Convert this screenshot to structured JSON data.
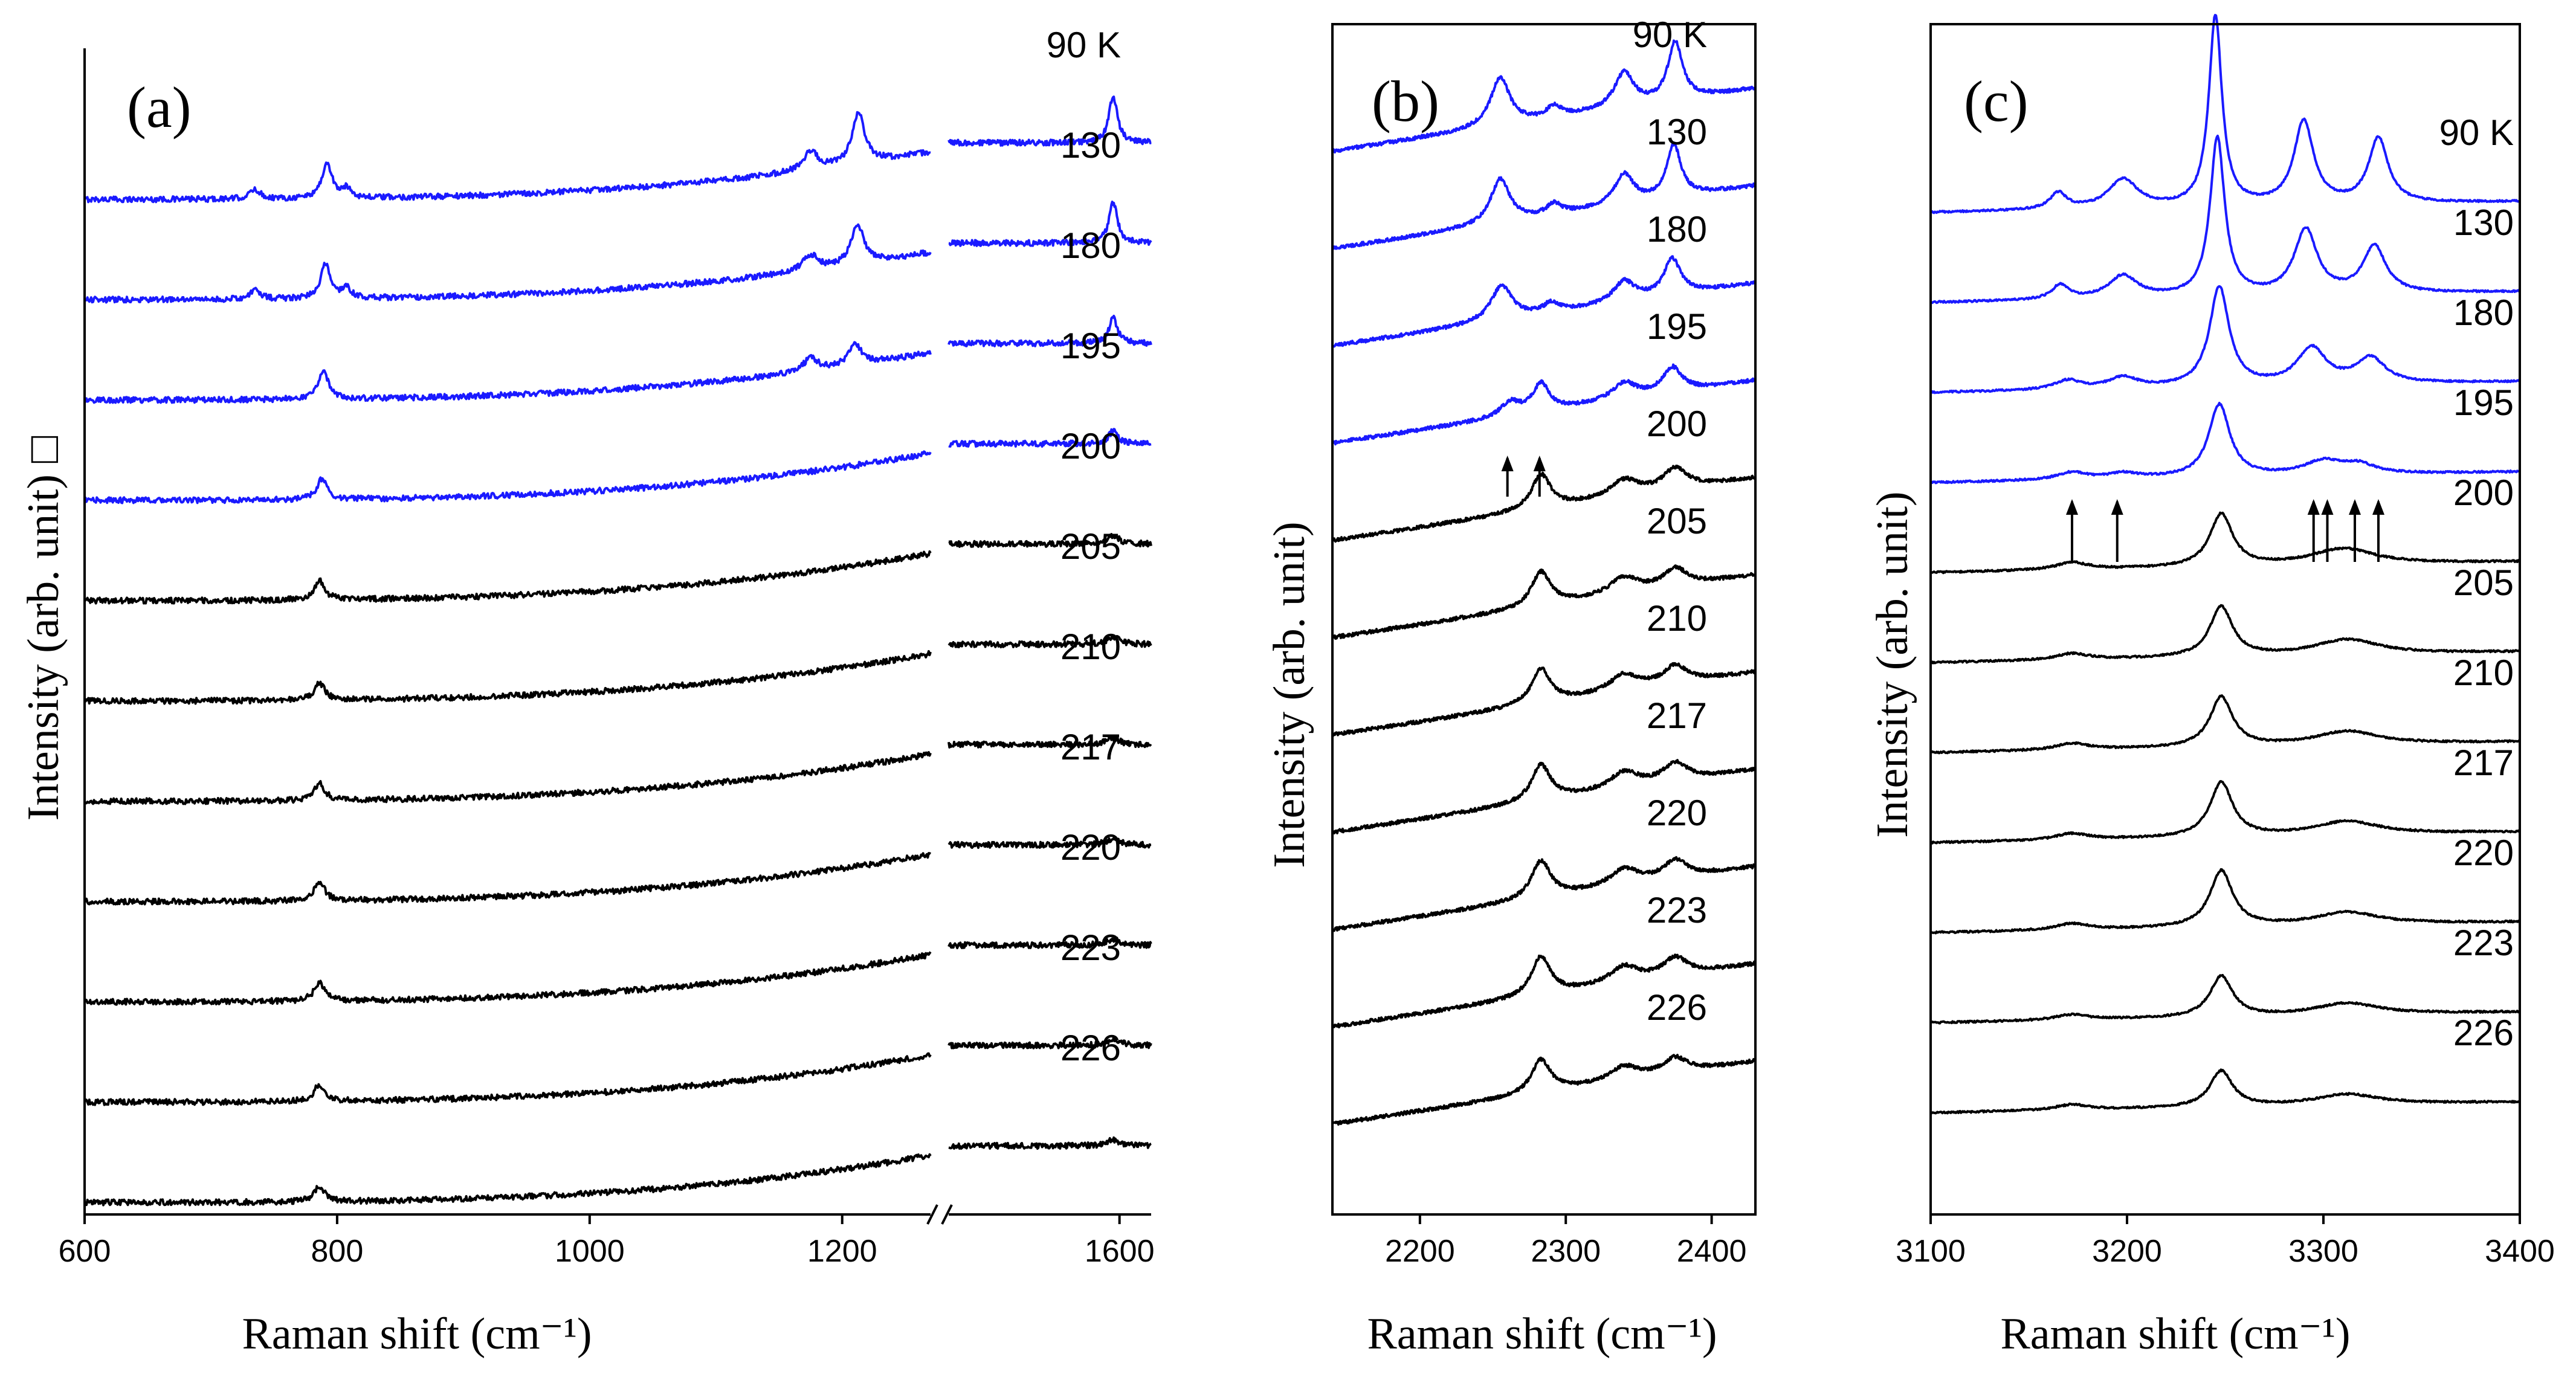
{
  "colors": {
    "cold": "#1a1aff",
    "warm": "#000000",
    "axis": "#000000"
  },
  "chart_data": [
    {
      "panel": "(a)",
      "type": "line",
      "xlabel": "Raman shift",
      "xunit": "(cm⁻¹)",
      "ylabel": "Intensity (arb. unit)",
      "ylabel_suffix": "□",
      "x_segments": [
        [
          600,
          1270
        ],
        [
          1330,
          1650
        ]
      ],
      "axis_break_at": 1300,
      "ticks": [
        600,
        800,
        1000,
        1200,
        1600
      ],
      "series": [
        {
          "temp": "90 K",
          "phase": "cold",
          "peaks": [
            [
              735,
              0.06,
              5
            ],
            [
              792,
              0.22,
              5
            ],
            [
              808,
              0.06,
              4
            ],
            [
              1175,
              0.12,
              7
            ],
            [
              1213,
              0.32,
              6
            ],
            [
              1590,
              0.3,
              8
            ]
          ]
        },
        {
          "temp": "130",
          "phase": "cold",
          "peaks": [
            [
              735,
              0.06,
              5
            ],
            [
              791,
              0.22,
              5
            ],
            [
              808,
              0.06,
              4
            ],
            [
              1175,
              0.1,
              7
            ],
            [
              1212,
              0.26,
              6
            ],
            [
              1590,
              0.26,
              8
            ]
          ]
        },
        {
          "temp": "180",
          "phase": "cold",
          "peaks": [
            [
              789,
              0.18,
              5
            ],
            [
              1175,
              0.08,
              7
            ],
            [
              1210,
              0.14,
              6
            ],
            [
              1590,
              0.16,
              8
            ]
          ]
        },
        {
          "temp": "195",
          "phase": "cold",
          "peaks": [
            [
              788,
              0.13,
              5
            ],
            [
              1590,
              0.08,
              9
            ]
          ]
        },
        {
          "temp": "200",
          "phase": "warm",
          "peaks": [
            [
              786,
              0.12,
              5
            ],
            [
              1590,
              0.05,
              12
            ]
          ]
        },
        {
          "temp": "205",
          "phase": "warm",
          "peaks": [
            [
              786,
              0.11,
              5
            ],
            [
              1590,
              0.05,
              12
            ]
          ]
        },
        {
          "temp": "210",
          "phase": "warm",
          "peaks": [
            [
              786,
              0.11,
              5
            ],
            [
              1590,
              0.04,
              12
            ]
          ]
        },
        {
          "temp": "217",
          "phase": "warm",
          "peaks": [
            [
              786,
              0.12,
              5
            ],
            [
              1590,
              0.04,
              12
            ]
          ]
        },
        {
          "temp": "220",
          "phase": "warm",
          "peaks": [
            [
              786,
              0.12,
              5
            ],
            [
              1590,
              0.04,
              12
            ]
          ]
        },
        {
          "temp": "223",
          "phase": "warm",
          "peaks": [
            [
              786,
              0.11,
              5
            ],
            [
              1590,
              0.04,
              12
            ]
          ]
        },
        {
          "temp": "226",
          "phase": "warm",
          "peaks": [
            [
              786,
              0.1,
              5
            ],
            [
              1590,
              0.04,
              12
            ]
          ]
        }
      ]
    },
    {
      "panel": "(b)",
      "type": "line",
      "xlabel": "Raman shift",
      "xunit": "(cm⁻¹)",
      "ylabel": "Intensity (arb. unit)",
      "xlim": [
        2140,
        2430
      ],
      "ticks": [
        2200,
        2300,
        2400
      ],
      "arrows_x": [
        2260,
        2282
      ],
      "series": [
        {
          "temp": "90 K",
          "phase": "cold",
          "peaks": [
            [
              2255,
              0.35,
              8
            ],
            [
              2292,
              0.08,
              6
            ],
            [
              2340,
              0.25,
              8
            ],
            [
              2375,
              0.42,
              6
            ]
          ]
        },
        {
          "temp": "130",
          "phase": "cold",
          "peaks": [
            [
              2255,
              0.32,
              8
            ],
            [
              2292,
              0.08,
              6
            ],
            [
              2340,
              0.22,
              8
            ],
            [
              2374,
              0.38,
              6
            ]
          ]
        },
        {
          "temp": "180",
          "phase": "cold",
          "peaks": [
            [
              2256,
              0.25,
              9
            ],
            [
              2290,
              0.07,
              6
            ],
            [
              2340,
              0.15,
              9
            ],
            [
              2373,
              0.26,
              7
            ]
          ]
        },
        {
          "temp": "195",
          "phase": "cold",
          "peaks": [
            [
              2262,
              0.1,
              8
            ],
            [
              2283,
              0.2,
              7
            ],
            [
              2340,
              0.12,
              10
            ],
            [
              2373,
              0.18,
              8
            ]
          ]
        },
        {
          "temp": "200",
          "phase": "warm",
          "peaks": [
            [
              2283,
              0.25,
              8
            ],
            [
              2340,
              0.12,
              12
            ],
            [
              2375,
              0.15,
              10
            ]
          ]
        },
        {
          "temp": "205",
          "phase": "warm",
          "peaks": [
            [
              2283,
              0.25,
              8
            ],
            [
              2340,
              0.12,
              12
            ],
            [
              2375,
              0.13,
              10
            ]
          ]
        },
        {
          "temp": "210",
          "phase": "warm",
          "peaks": [
            [
              2283,
              0.25,
              8
            ],
            [
              2340,
              0.12,
              12
            ],
            [
              2375,
              0.13,
              10
            ]
          ]
        },
        {
          "temp": "217",
          "phase": "warm",
          "peaks": [
            [
              2283,
              0.26,
              8
            ],
            [
              2340,
              0.12,
              12
            ],
            [
              2375,
              0.13,
              10
            ]
          ]
        },
        {
          "temp": "220",
          "phase": "warm",
          "peaks": [
            [
              2283,
              0.27,
              8
            ],
            [
              2340,
              0.12,
              12
            ],
            [
              2375,
              0.13,
              10
            ]
          ]
        },
        {
          "temp": "223",
          "phase": "warm",
          "peaks": [
            [
              2283,
              0.28,
              8
            ],
            [
              2340,
              0.12,
              12
            ],
            [
              2375,
              0.13,
              10
            ]
          ]
        },
        {
          "temp": "226",
          "phase": "warm",
          "peaks": [
            [
              2283,
              0.24,
              8
            ],
            [
              2340,
              0.1,
              12
            ],
            [
              2375,
              0.11,
              10
            ]
          ]
        }
      ]
    },
    {
      "panel": "(c)",
      "type": "line",
      "xlabel": "Raman shift",
      "xunit": "(cm⁻¹)",
      "ylabel": "Intensity (arb. unit)",
      "xlim": [
        3100,
        3400
      ],
      "ticks": [
        3100,
        3200,
        3300,
        3400
      ],
      "arrows_x": [
        3172,
        3195,
        3295,
        3302,
        3316,
        3328
      ],
      "series": [
        {
          "temp": "90 K",
          "phase": "cold",
          "peaks": [
            [
              3165,
              0.18,
              5
            ],
            [
              3198,
              0.32,
              9
            ],
            [
              3245,
              2.1,
              4
            ],
            [
              3290,
              0.92,
              6
            ],
            [
              3328,
              0.72,
              6
            ]
          ]
        },
        {
          "temp": "130",
          "phase": "cold",
          "peaks": [
            [
              3166,
              0.16,
              5
            ],
            [
              3198,
              0.25,
              9
            ],
            [
              3246,
              1.75,
              4.5
            ],
            [
              3291,
              0.72,
              7
            ],
            [
              3326,
              0.52,
              7
            ]
          ]
        },
        {
          "temp": "180",
          "phase": "cold",
          "peaks": [
            [
              3170,
              0.1,
              8
            ],
            [
              3198,
              0.12,
              9
            ],
            [
              3247,
              1.1,
              6
            ],
            [
              3294,
              0.4,
              9
            ],
            [
              3324,
              0.28,
              9
            ]
          ]
        },
        {
          "temp": "195",
          "phase": "cold",
          "peaks": [
            [
              3172,
              0.08,
              9
            ],
            [
              3198,
              0.06,
              9
            ],
            [
              3247,
              0.8,
              6.5
            ],
            [
              3300,
              0.15,
              12
            ],
            [
              3318,
              0.1,
              10
            ]
          ]
        },
        {
          "temp": "200",
          "phase": "warm",
          "peaks": [
            [
              3172,
              0.08,
              10
            ],
            [
              3248,
              0.58,
              7
            ],
            [
              3310,
              0.18,
              20
            ]
          ]
        },
        {
          "temp": "205",
          "phase": "warm",
          "peaks": [
            [
              3172,
              0.07,
              10
            ],
            [
              3248,
              0.55,
              7
            ],
            [
              3312,
              0.17,
              20
            ]
          ]
        },
        {
          "temp": "210",
          "phase": "warm",
          "peaks": [
            [
              3172,
              0.07,
              10
            ],
            [
              3248,
              0.55,
              7
            ],
            [
              3312,
              0.15,
              20
            ]
          ]
        },
        {
          "temp": "217",
          "phase": "warm",
          "peaks": [
            [
              3172,
              0.07,
              10
            ],
            [
              3248,
              0.6,
              7
            ],
            [
              3312,
              0.15,
              20
            ]
          ]
        },
        {
          "temp": "220",
          "phase": "warm",
          "peaks": [
            [
              3172,
              0.07,
              10
            ],
            [
              3248,
              0.62,
              7
            ],
            [
              3312,
              0.14,
              20
            ]
          ]
        },
        {
          "temp": "223",
          "phase": "warm",
          "peaks": [
            [
              3172,
              0.06,
              10
            ],
            [
              3248,
              0.45,
              7
            ],
            [
              3312,
              0.13,
              20
            ]
          ]
        },
        {
          "temp": "226",
          "phase": "warm",
          "peaks": [
            [
              3172,
              0.06,
              10
            ],
            [
              3248,
              0.4,
              7
            ],
            [
              3312,
              0.12,
              20
            ]
          ]
        }
      ]
    }
  ]
}
